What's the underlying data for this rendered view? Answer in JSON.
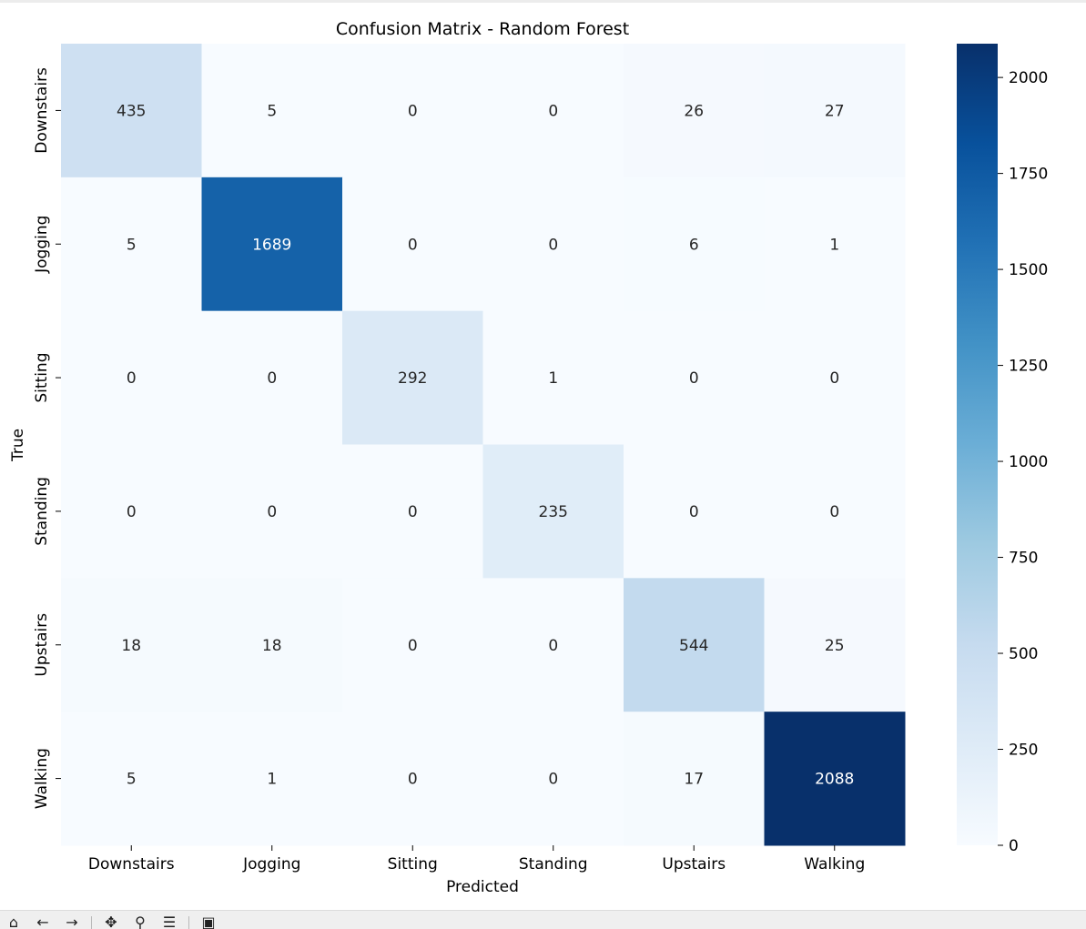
{
  "chart_data": {
    "type": "heatmap",
    "title": "Confusion Matrix - Random Forest",
    "xlabel": "Predicted",
    "ylabel": "True",
    "x_categories": [
      "Downstairs",
      "Jogging",
      "Sitting",
      "Standing",
      "Upstairs",
      "Walking"
    ],
    "y_categories": [
      "Downstairs",
      "Jogging",
      "Sitting",
      "Standing",
      "Upstairs",
      "Walking"
    ],
    "values": [
      [
        435,
        5,
        0,
        0,
        26,
        27
      ],
      [
        5,
        1689,
        0,
        0,
        6,
        1
      ],
      [
        0,
        0,
        292,
        1,
        0,
        0
      ],
      [
        0,
        0,
        0,
        235,
        0,
        0
      ],
      [
        18,
        18,
        0,
        0,
        544,
        25
      ],
      [
        5,
        1,
        0,
        0,
        17,
        2088
      ]
    ],
    "colormap": "Blues",
    "color_low": "#f7fbff",
    "color_high": "#08306b",
    "colorbar": {
      "range": [
        0,
        2088
      ],
      "ticks": [
        0,
        250,
        500,
        750,
        1000,
        1250,
        1500,
        1750,
        2000
      ]
    },
    "grid": false,
    "legend": "colorbar-right"
  },
  "toolbar": {
    "icons": [
      "home-icon",
      "back-icon",
      "forward-icon",
      "pan-icon",
      "zoom-icon",
      "configure-icon",
      "save-icon"
    ]
  }
}
